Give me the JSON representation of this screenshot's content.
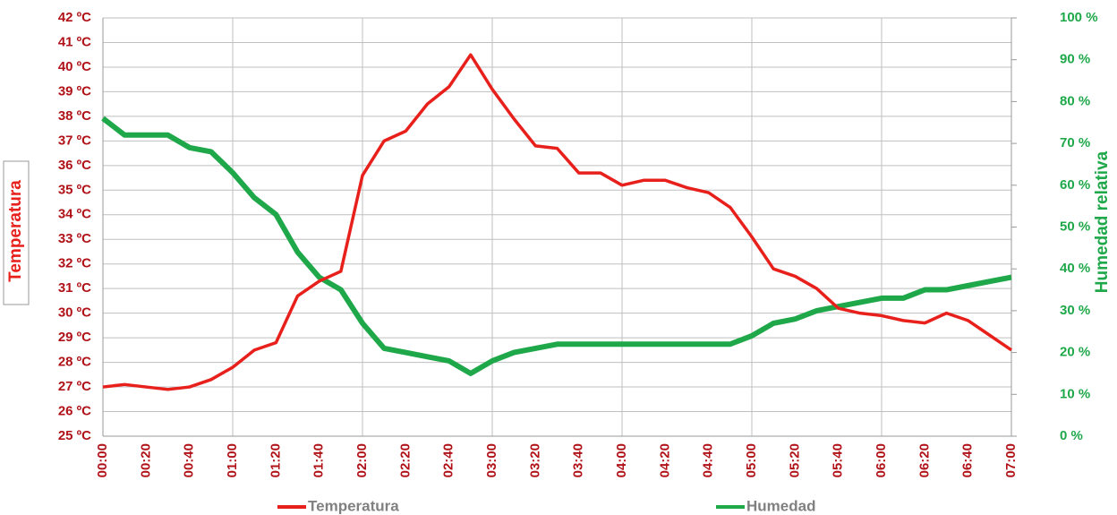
{
  "chart_data": {
    "type": "line",
    "y_label": "Temperatura",
    "y2_label": "Humedad relativa",
    "categories": [
      "00:00",
      null,
      "00:20",
      null,
      "00:40",
      null,
      "01:00",
      null,
      "01:20",
      null,
      "01:40",
      null,
      "02:00",
      null,
      "02:20",
      null,
      "02:40",
      null,
      "03:00",
      null,
      "03:20",
      null,
      "03:40",
      null,
      "04:00",
      null,
      "04:20",
      null,
      "04:40",
      null,
      "05:00",
      null,
      "05:20",
      null,
      "05:40",
      null,
      "06:00",
      null,
      "06:20",
      null,
      "06:40",
      null,
      "07:00"
    ],
    "series": [
      {
        "name": "Temperatura",
        "color": "#e8201c",
        "axis": "y",
        "values": [
          27.0,
          27.1,
          27.0,
          26.9,
          27.0,
          27.3,
          27.8,
          28.5,
          28.8,
          30.7,
          31.3,
          31.7,
          35.6,
          37.0,
          37.4,
          38.5,
          39.2,
          40.5,
          39.1,
          37.9,
          36.8,
          36.7,
          35.7,
          35.7,
          35.2,
          35.4,
          35.4,
          35.1,
          34.9,
          34.3,
          33.1,
          31.8,
          31.5,
          31.0,
          30.2,
          30.0,
          29.9,
          29.7,
          29.6,
          30.0,
          29.7,
          29.1,
          28.5
        ]
      },
      {
        "name": "Humedad",
        "color": "#1fa84a",
        "axis": "y2",
        "values": [
          76,
          72,
          72,
          72,
          69,
          68,
          63,
          57,
          53,
          44,
          38,
          35,
          27,
          21,
          20,
          19,
          18,
          15,
          18,
          20,
          21,
          22,
          22,
          22,
          22,
          22,
          22,
          22,
          22,
          22,
          24,
          27,
          28,
          30,
          31,
          32,
          33,
          33,
          35,
          35,
          36,
          37,
          38
        ]
      }
    ],
    "ylim": [
      25,
      42
    ],
    "yticks": [
      {
        "value": 25,
        "label": "25 ºC"
      },
      {
        "value": 26,
        "label": "26 ºC"
      },
      {
        "value": 27,
        "label": "27 ºC"
      },
      {
        "value": 28,
        "label": "28 ºC"
      },
      {
        "value": 29,
        "label": "29 ºC"
      },
      {
        "value": 30,
        "label": "30 ºC"
      },
      {
        "value": 31,
        "label": "31 ºC"
      },
      {
        "value": 32,
        "label": "32 ºC"
      },
      {
        "value": 33,
        "label": "33 ºC"
      },
      {
        "value": 34,
        "label": "34 ºC"
      },
      {
        "value": 35,
        "label": "35 ºC"
      },
      {
        "value": 36,
        "label": "36 ºC"
      },
      {
        "value": 37,
        "label": "37 ºC"
      },
      {
        "value": 38,
        "label": "38 ºC"
      },
      {
        "value": 39,
        "label": "39 ºC"
      },
      {
        "value": 40,
        "label": "40 ºC"
      },
      {
        "value": 41,
        "label": "41 ºC"
      },
      {
        "value": 42,
        "label": "42 ºC"
      }
    ],
    "y2lim": [
      0,
      100
    ],
    "y2ticks": [
      {
        "value": 0,
        "label": "0 %"
      },
      {
        "value": 10,
        "label": "10 %"
      },
      {
        "value": 20,
        "label": "20 %"
      },
      {
        "value": 30,
        "label": "30 %"
      },
      {
        "value": 40,
        "label": "40 %"
      },
      {
        "value": 50,
        "label": "50 %"
      },
      {
        "value": 60,
        "label": "60 %"
      },
      {
        "value": 70,
        "label": "70 %"
      },
      {
        "value": 80,
        "label": "80 %"
      },
      {
        "value": 90,
        "label": "90 %"
      },
      {
        "value": 100,
        "label": "100 %"
      }
    ],
    "grid": true,
    "legend": "bottom"
  }
}
